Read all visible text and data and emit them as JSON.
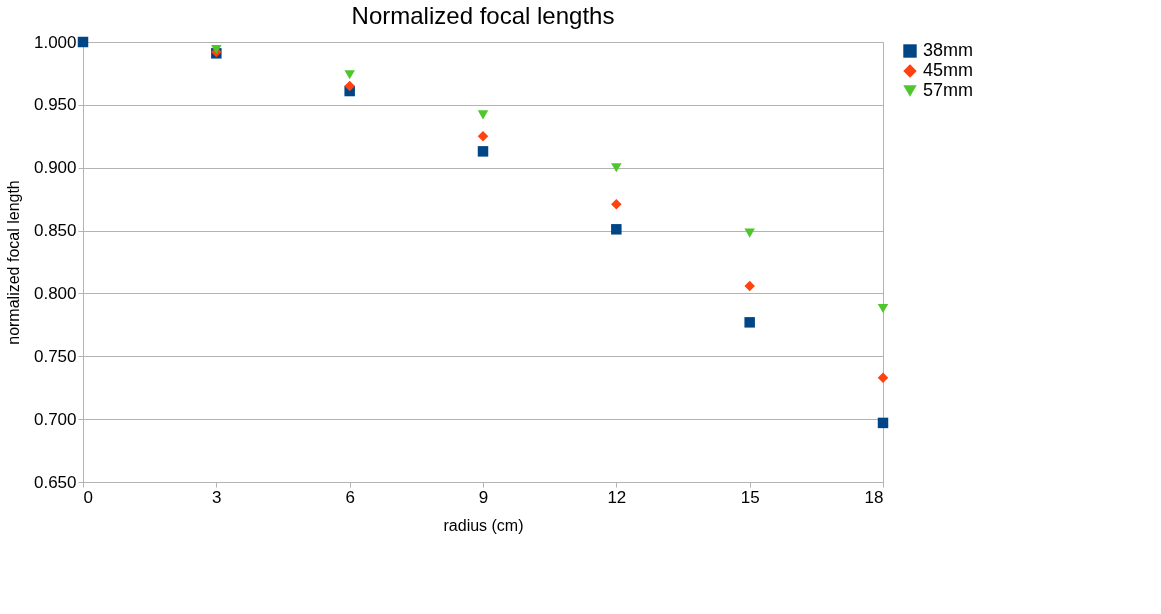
{
  "chart_data": {
    "type": "scatter",
    "title": "Normalized focal lengths",
    "xlabel": "radius (cm)",
    "ylabel": "normalized focal length",
    "x": [
      0,
      3,
      6,
      9,
      12,
      15,
      18
    ],
    "series": [
      {
        "name": "38mm",
        "color": "#004586",
        "marker": "square",
        "values": [
          1.0,
          0.991,
          0.961,
          0.913,
          0.851,
          0.777,
          0.697
        ]
      },
      {
        "name": "45mm",
        "color": "#ff420e",
        "marker": "diamond",
        "values": [
          null,
          0.992,
          0.965,
          0.925,
          0.871,
          0.806,
          0.733
        ]
      },
      {
        "name": "57mm",
        "color": "#4fc72c",
        "marker": "triangle",
        "values": [
          null,
          0.994,
          0.974,
          0.942,
          0.9,
          0.848,
          0.788
        ]
      }
    ],
    "xlim": [
      0,
      18
    ],
    "xticks": [
      0,
      3,
      6,
      9,
      12,
      15,
      18
    ],
    "ylim": [
      0.65,
      1.0
    ],
    "yticks": [
      {
        "value": 0.65,
        "label": "0.650"
      },
      {
        "value": 0.7,
        "label": "0.700"
      },
      {
        "value": 0.75,
        "label": "0.750"
      },
      {
        "value": 0.8,
        "label": "0.800"
      },
      {
        "value": 0.85,
        "label": "0.850"
      },
      {
        "value": 0.9,
        "label": "0.900"
      },
      {
        "value": 0.95,
        "label": "0.950"
      },
      {
        "value": 1.0,
        "label": "1.000"
      }
    ],
    "grid": "y",
    "legend": "right"
  }
}
